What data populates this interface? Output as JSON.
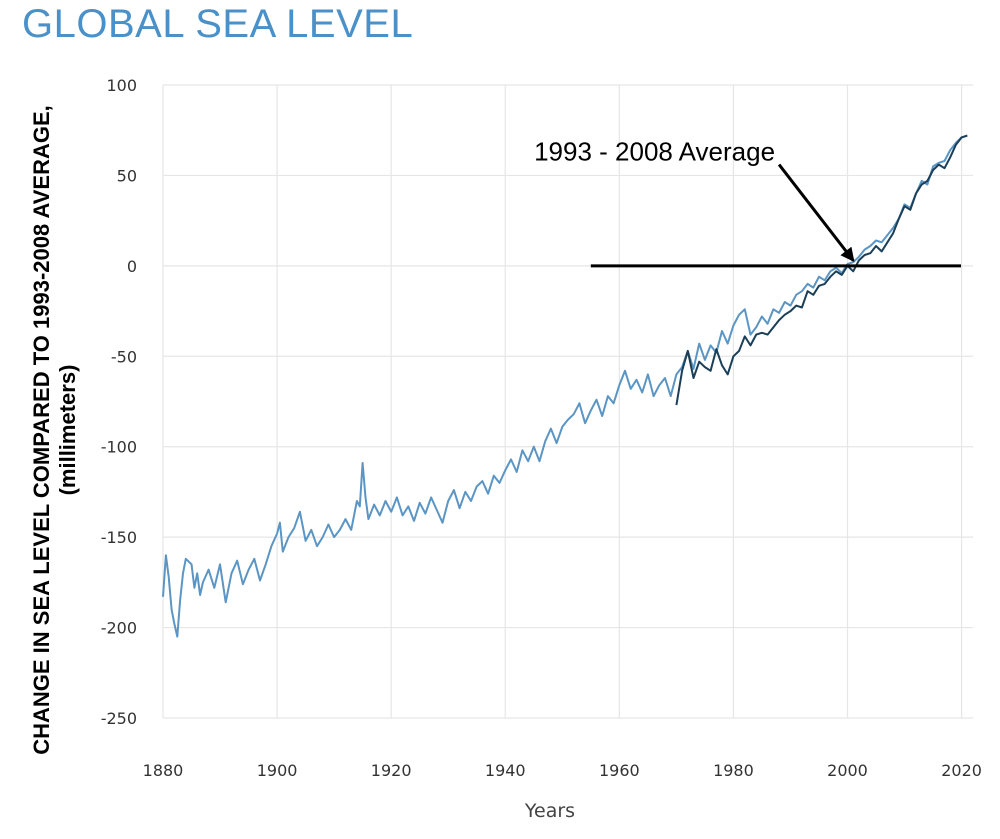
{
  "title": "GLOBAL SEA LEVEL",
  "colors": {
    "title": "#4a90c9",
    "series_tide": "#5b95c4",
    "series_sat": "#1a3f58",
    "grid": "#e6e6e6"
  },
  "chart_data": {
    "type": "line",
    "title": "GLOBAL SEA LEVEL",
    "xlabel": "Years",
    "ylabel_line1": "CHANGE IN SEA LEVEL COMPARED TO 1993-2008 AVERAGE,",
    "ylabel_line2": "(millimeters)",
    "xlim": [
      1880,
      2022
    ],
    "ylim": [
      -250,
      100
    ],
    "xticks": [
      "1880",
      "1900",
      "1920",
      "1940",
      "1960",
      "1980",
      "2000",
      "2020"
    ],
    "yticks": [
      "100",
      "50",
      "0",
      "-50",
      "-100",
      "-150",
      "-200",
      "-250"
    ],
    "grid": true,
    "annotation": {
      "text": "1993 - 2008 Average",
      "baseline_value": 0,
      "baseline_x": [
        1955,
        2022
      ],
      "arrow_from": [
        1988,
        56
      ],
      "arrow_to": [
        2001,
        3
      ]
    },
    "series": [
      {
        "color": "#5b95c4",
        "points": [
          [
            1880,
            -183
          ],
          [
            1880.5,
            -160
          ],
          [
            1881,
            -172
          ],
          [
            1881.5,
            -190
          ],
          [
            1882,
            -198
          ],
          [
            1882.5,
            -205
          ],
          [
            1883,
            -185
          ],
          [
            1883.5,
            -170
          ],
          [
            1884,
            -162
          ],
          [
            1885,
            -165
          ],
          [
            1885.5,
            -178
          ],
          [
            1886,
            -170
          ],
          [
            1886.5,
            -182
          ],
          [
            1887,
            -175
          ],
          [
            1888,
            -168
          ],
          [
            1889,
            -178
          ],
          [
            1890,
            -165
          ],
          [
            1891,
            -186
          ],
          [
            1892,
            -170
          ],
          [
            1893,
            -163
          ],
          [
            1894,
            -176
          ],
          [
            1895,
            -168
          ],
          [
            1896,
            -162
          ],
          [
            1897,
            -174
          ],
          [
            1898,
            -165
          ],
          [
            1899,
            -155
          ],
          [
            1900,
            -148
          ],
          [
            1900.5,
            -142
          ],
          [
            1901,
            -158
          ],
          [
            1902,
            -150
          ],
          [
            1903,
            -145
          ],
          [
            1904,
            -136
          ],
          [
            1905,
            -152
          ],
          [
            1906,
            -146
          ],
          [
            1907,
            -155
          ],
          [
            1908,
            -150
          ],
          [
            1909,
            -143
          ],
          [
            1910,
            -150
          ],
          [
            1911,
            -146
          ],
          [
            1912,
            -140
          ],
          [
            1913,
            -146
          ],
          [
            1914,
            -130
          ],
          [
            1914.5,
            -133
          ],
          [
            1915,
            -109
          ],
          [
            1915.5,
            -128
          ],
          [
            1916,
            -140
          ],
          [
            1917,
            -132
          ],
          [
            1918,
            -138
          ],
          [
            1919,
            -130
          ],
          [
            1920,
            -136
          ],
          [
            1921,
            -128
          ],
          [
            1922,
            -138
          ],
          [
            1923,
            -133
          ],
          [
            1924,
            -141
          ],
          [
            1925,
            -131
          ],
          [
            1926,
            -137
          ],
          [
            1927,
            -128
          ],
          [
            1928,
            -135
          ],
          [
            1929,
            -142
          ],
          [
            1930,
            -130
          ],
          [
            1931,
            -124
          ],
          [
            1932,
            -134
          ],
          [
            1933,
            -125
          ],
          [
            1934,
            -130
          ],
          [
            1935,
            -122
          ],
          [
            1936,
            -119
          ],
          [
            1937,
            -126
          ],
          [
            1938,
            -116
          ],
          [
            1939,
            -120
          ],
          [
            1940,
            -113
          ],
          [
            1941,
            -107
          ],
          [
            1942,
            -114
          ],
          [
            1943,
            -102
          ],
          [
            1944,
            -108
          ],
          [
            1945,
            -100
          ],
          [
            1946,
            -108
          ],
          [
            1947,
            -97
          ],
          [
            1948,
            -90
          ],
          [
            1949,
            -98
          ],
          [
            1950,
            -89
          ],
          [
            1951,
            -85
          ],
          [
            1952,
            -82
          ],
          [
            1953,
            -76
          ],
          [
            1954,
            -87
          ],
          [
            1955,
            -80
          ],
          [
            1956,
            -74
          ],
          [
            1957,
            -83
          ],
          [
            1958,
            -72
          ],
          [
            1959,
            -76
          ],
          [
            1960,
            -66
          ],
          [
            1961,
            -58
          ],
          [
            1962,
            -68
          ],
          [
            1963,
            -63
          ],
          [
            1964,
            -70
          ],
          [
            1965,
            -60
          ],
          [
            1966,
            -72
          ],
          [
            1967,
            -66
          ],
          [
            1968,
            -62
          ],
          [
            1969,
            -72
          ],
          [
            1970,
            -60
          ],
          [
            1971,
            -56
          ],
          [
            1972,
            -47
          ],
          [
            1973,
            -57
          ],
          [
            1974,
            -43
          ],
          [
            1975,
            -52
          ],
          [
            1976,
            -44
          ],
          [
            1977,
            -48
          ],
          [
            1978,
            -36
          ],
          [
            1979,
            -43
          ],
          [
            1980,
            -33
          ],
          [
            1981,
            -27
          ],
          [
            1982,
            -24
          ],
          [
            1983,
            -38
          ],
          [
            1984,
            -34
          ],
          [
            1985,
            -28
          ],
          [
            1986,
            -32
          ],
          [
            1987,
            -24
          ],
          [
            1988,
            -26
          ],
          [
            1989,
            -20
          ],
          [
            1990,
            -22
          ],
          [
            1991,
            -16
          ],
          [
            1992,
            -14
          ],
          [
            1993,
            -10
          ],
          [
            1994,
            -12
          ],
          [
            1995,
            -6
          ],
          [
            1996,
            -8
          ],
          [
            1997,
            -3
          ],
          [
            1998,
            -1
          ],
          [
            1999,
            -4
          ],
          [
            2000,
            1
          ],
          [
            2001,
            2
          ],
          [
            2002,
            5
          ],
          [
            2003,
            9
          ],
          [
            2004,
            11
          ],
          [
            2005,
            14
          ],
          [
            2006,
            13
          ],
          [
            2007,
            17
          ],
          [
            2008,
            21
          ],
          [
            2009,
            26
          ],
          [
            2010,
            34
          ],
          [
            2011,
            32
          ],
          [
            2012,
            40
          ],
          [
            2013,
            47
          ],
          [
            2014,
            45
          ],
          [
            2015,
            55
          ],
          [
            2016,
            57
          ],
          [
            2017,
            58
          ],
          [
            2018,
            64
          ],
          [
            2019,
            68
          ],
          [
            2020,
            71
          ],
          [
            2021,
            72
          ]
        ]
      },
      {
        "color": "#1a3f58",
        "points": [
          [
            1970,
            -77
          ],
          [
            1971,
            -58
          ],
          [
            1972,
            -47
          ],
          [
            1973,
            -62
          ],
          [
            1974,
            -53
          ],
          [
            1975,
            -56
          ],
          [
            1976,
            -58
          ],
          [
            1977,
            -46
          ],
          [
            1978,
            -55
          ],
          [
            1979,
            -60
          ],
          [
            1980,
            -50
          ],
          [
            1981,
            -47
          ],
          [
            1982,
            -39
          ],
          [
            1983,
            -44
          ],
          [
            1984,
            -38
          ],
          [
            1985,
            -37
          ],
          [
            1986,
            -38
          ],
          [
            1987,
            -34
          ],
          [
            1988,
            -30
          ],
          [
            1989,
            -27
          ],
          [
            1990,
            -25
          ],
          [
            1991,
            -22
          ],
          [
            1992,
            -23
          ],
          [
            1993,
            -14
          ],
          [
            1994,
            -16
          ],
          [
            1995,
            -11
          ],
          [
            1996,
            -10
          ],
          [
            1997,
            -6
          ],
          [
            1998,
            -3
          ],
          [
            1999,
            -5
          ],
          [
            2000,
            0
          ],
          [
            2001,
            -3
          ],
          [
            2002,
            3
          ],
          [
            2003,
            6
          ],
          [
            2004,
            7
          ],
          [
            2005,
            11
          ],
          [
            2006,
            8
          ],
          [
            2007,
            13
          ],
          [
            2008,
            18
          ],
          [
            2009,
            26
          ],
          [
            2010,
            33
          ],
          [
            2011,
            31
          ],
          [
            2012,
            40
          ],
          [
            2013,
            45
          ],
          [
            2014,
            47
          ],
          [
            2015,
            53
          ],
          [
            2016,
            56
          ],
          [
            2017,
            54
          ],
          [
            2018,
            60
          ],
          [
            2019,
            67
          ],
          [
            2020,
            71
          ],
          [
            2021,
            72
          ]
        ]
      }
    ]
  }
}
